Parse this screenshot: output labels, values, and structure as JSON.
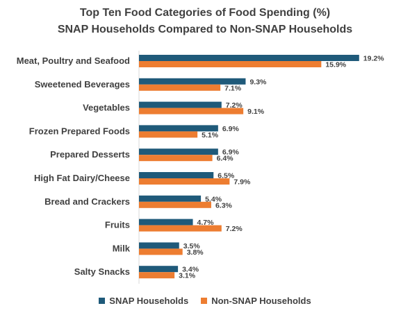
{
  "chart_data": {
    "type": "bar",
    "orientation": "horizontal",
    "title": "Top Ten Food Categories of Food Spending (%)",
    "subtitle": "SNAP Households Compared to Non-SNAP Households",
    "categories": [
      "Meat, Poultry and Seafood",
      "Sweetened Beverages",
      "Vegetables",
      "Frozen Prepared Foods",
      "Prepared Desserts",
      "High Fat Dairy/Cheese",
      "Bread and Crackers",
      "Fruits",
      "Milk",
      "Salty Snacks"
    ],
    "series": [
      {
        "name": "SNAP Households",
        "color": "#1f5a7a",
        "values": [
          19.2,
          9.3,
          7.2,
          6.9,
          6.9,
          6.5,
          5.4,
          4.7,
          3.5,
          3.4
        ],
        "labels": [
          "19.2%",
          "9.3%",
          "7.2%",
          "6.9%",
          "6.9%",
          "6.5%",
          "5.4%",
          "4.7%",
          "3.5%",
          "3.4%"
        ]
      },
      {
        "name": "Non-SNAP Households",
        "color": "#ed7d31",
        "values": [
          15.9,
          7.1,
          9.1,
          5.1,
          6.4,
          7.9,
          6.3,
          7.2,
          3.8,
          3.1
        ],
        "labels": [
          "15.9%",
          "7.1%",
          "9.1%",
          "5.1%",
          "6.4%",
          "7.9%",
          "6.3%",
          "7.2%",
          "3.8%",
          "3.1%"
        ]
      }
    ],
    "legend_position": "bottom",
    "grid": false,
    "xlim": [
      0,
      20
    ]
  }
}
